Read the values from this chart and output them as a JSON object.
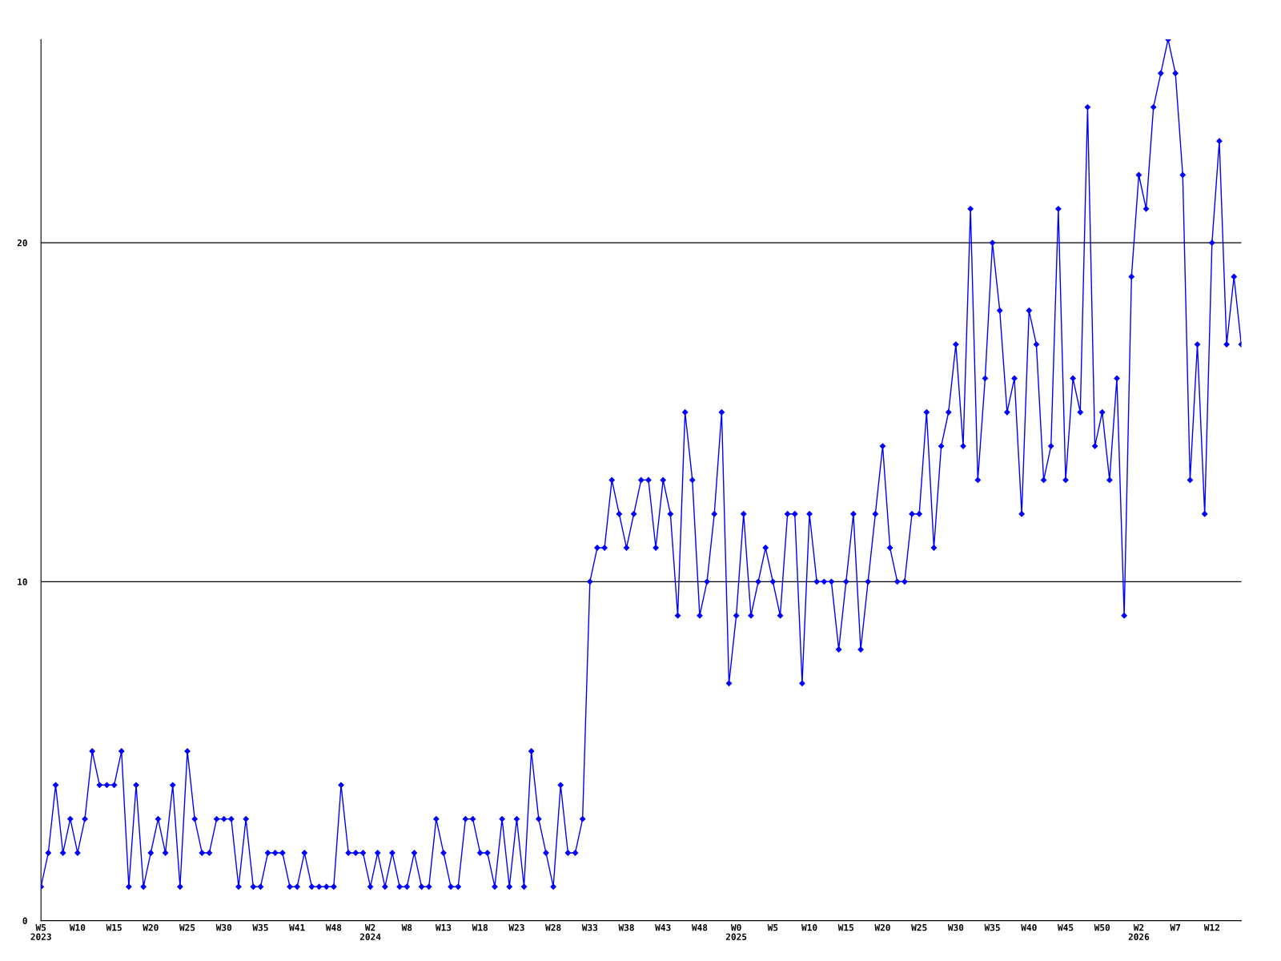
{
  "chart_data": {
    "type": "line",
    "categories": [
      "W5\n2023",
      null,
      null,
      null,
      null,
      "W10",
      null,
      null,
      null,
      null,
      "W15",
      null,
      null,
      null,
      null,
      "W20",
      null,
      null,
      null,
      null,
      "W25",
      null,
      null,
      null,
      null,
      "W30",
      null,
      null,
      null,
      null,
      "W35",
      null,
      null,
      null,
      null,
      "W41",
      null,
      null,
      null,
      null,
      "W48",
      null,
      null,
      null,
      null,
      "W2\n2024",
      null,
      null,
      null,
      null,
      "W8",
      null,
      null,
      null,
      null,
      "W13",
      null,
      null,
      null,
      null,
      "W18",
      null,
      null,
      null,
      null,
      "W23",
      null,
      null,
      null,
      null,
      "W28",
      null,
      null,
      null,
      null,
      "W33",
      null,
      null,
      null,
      null,
      "W38",
      null,
      null,
      null,
      null,
      "W43",
      null,
      null,
      null,
      null,
      "W48",
      null,
      null,
      null,
      null,
      "W0\n2025",
      null,
      null,
      null,
      null,
      "W5",
      null,
      null,
      null,
      null,
      "W10",
      null,
      null,
      null,
      null,
      "W15",
      null,
      null,
      null,
      null,
      "W20",
      null,
      null,
      null,
      null,
      "W25",
      null,
      null,
      null,
      null,
      "W30",
      null,
      null,
      null,
      null,
      "W35",
      null,
      null,
      null,
      null,
      "W40",
      null,
      null,
      null,
      null,
      "W45",
      null,
      null,
      null,
      null,
      "W50",
      null,
      null,
      null,
      null,
      "W2\n2026",
      null,
      null,
      null,
      null,
      "W7",
      null,
      null,
      null,
      null,
      "W12",
      null,
      null,
      null,
      null
    ],
    "series": [
      {
        "color": "#0000ff",
        "values": [
          1,
          2,
          4,
          2,
          3,
          2,
          3,
          5,
          4,
          4,
          4,
          5,
          1,
          4,
          1,
          2,
          3,
          2,
          4,
          1,
          5,
          3,
          2,
          2,
          3,
          3,
          3,
          1,
          3,
          1,
          1,
          2,
          2,
          2,
          1,
          1,
          2,
          1,
          1,
          1,
          1,
          4,
          2,
          2,
          2,
          1,
          2,
          1,
          2,
          1,
          1,
          2,
          1,
          1,
          3,
          2,
          1,
          1,
          3,
          3,
          2,
          2,
          1,
          3,
          1,
          3,
          1,
          5,
          3,
          2,
          1,
          4,
          2,
          2,
          3,
          10,
          11,
          11,
          13,
          12,
          11,
          12,
          13,
          13,
          11,
          13,
          12,
          9,
          15,
          13,
          9,
          10,
          12,
          15,
          7,
          9,
          12,
          9,
          10,
          11,
          10,
          9,
          12,
          12,
          7,
          12,
          10,
          10,
          10,
          8,
          10,
          12,
          8,
          10,
          12,
          14,
          11,
          10,
          10,
          12,
          12,
          15,
          11,
          14,
          15,
          17,
          14,
          21,
          13,
          16,
          20,
          18,
          15,
          16,
          12,
          18,
          17,
          13,
          14,
          21,
          13,
          16,
          15,
          24,
          14,
          15,
          13,
          16,
          9,
          19,
          22,
          21,
          24,
          25,
          26,
          25,
          22,
          13,
          17,
          12,
          20,
          23,
          17,
          19,
          17
        ]
      }
    ],
    "ylim": [
      0,
      26
    ],
    "yticks": [
      0,
      10,
      20
    ],
    "grid": "y",
    "marker": "diamond",
    "line_style": "solid",
    "legend": false
  }
}
